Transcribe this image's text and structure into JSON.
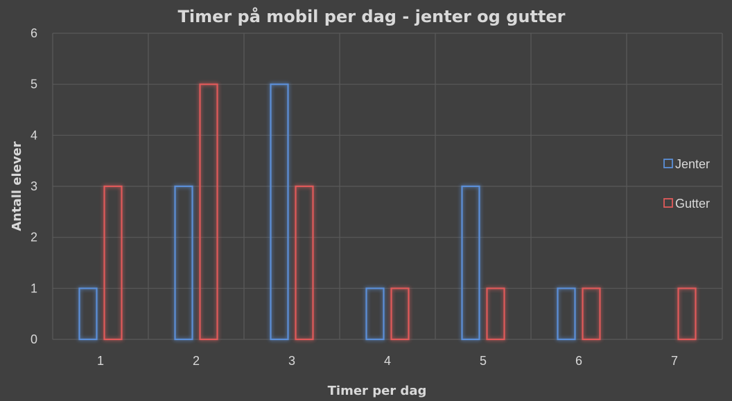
{
  "chart_data": {
    "type": "bar",
    "title": "Timer på mobil per dag - jenter og gutter",
    "xlabel": "Timer per dag",
    "ylabel": "Antall elever",
    "categories": [
      "1",
      "2",
      "3",
      "4",
      "5",
      "6",
      "7"
    ],
    "series": [
      {
        "name": "Jenter",
        "values": [
          1,
          3,
          5,
          1,
          3,
          1,
          0
        ],
        "color": "#5b8fd8",
        "glow": "#3b7ddd"
      },
      {
        "name": "Gutter",
        "values": [
          3,
          5,
          3,
          1,
          1,
          1,
          1
        ],
        "color": "#e05a5a",
        "glow": "#e03a3a"
      }
    ],
    "ylim": [
      0,
      6
    ],
    "yticks": [
      "0",
      "1",
      "2",
      "3",
      "4",
      "5",
      "6"
    ],
    "grid": true,
    "legend": "right",
    "colors": {
      "background": "#404040",
      "grid": "#5a5a5a",
      "text": "#d9d9d9"
    }
  }
}
